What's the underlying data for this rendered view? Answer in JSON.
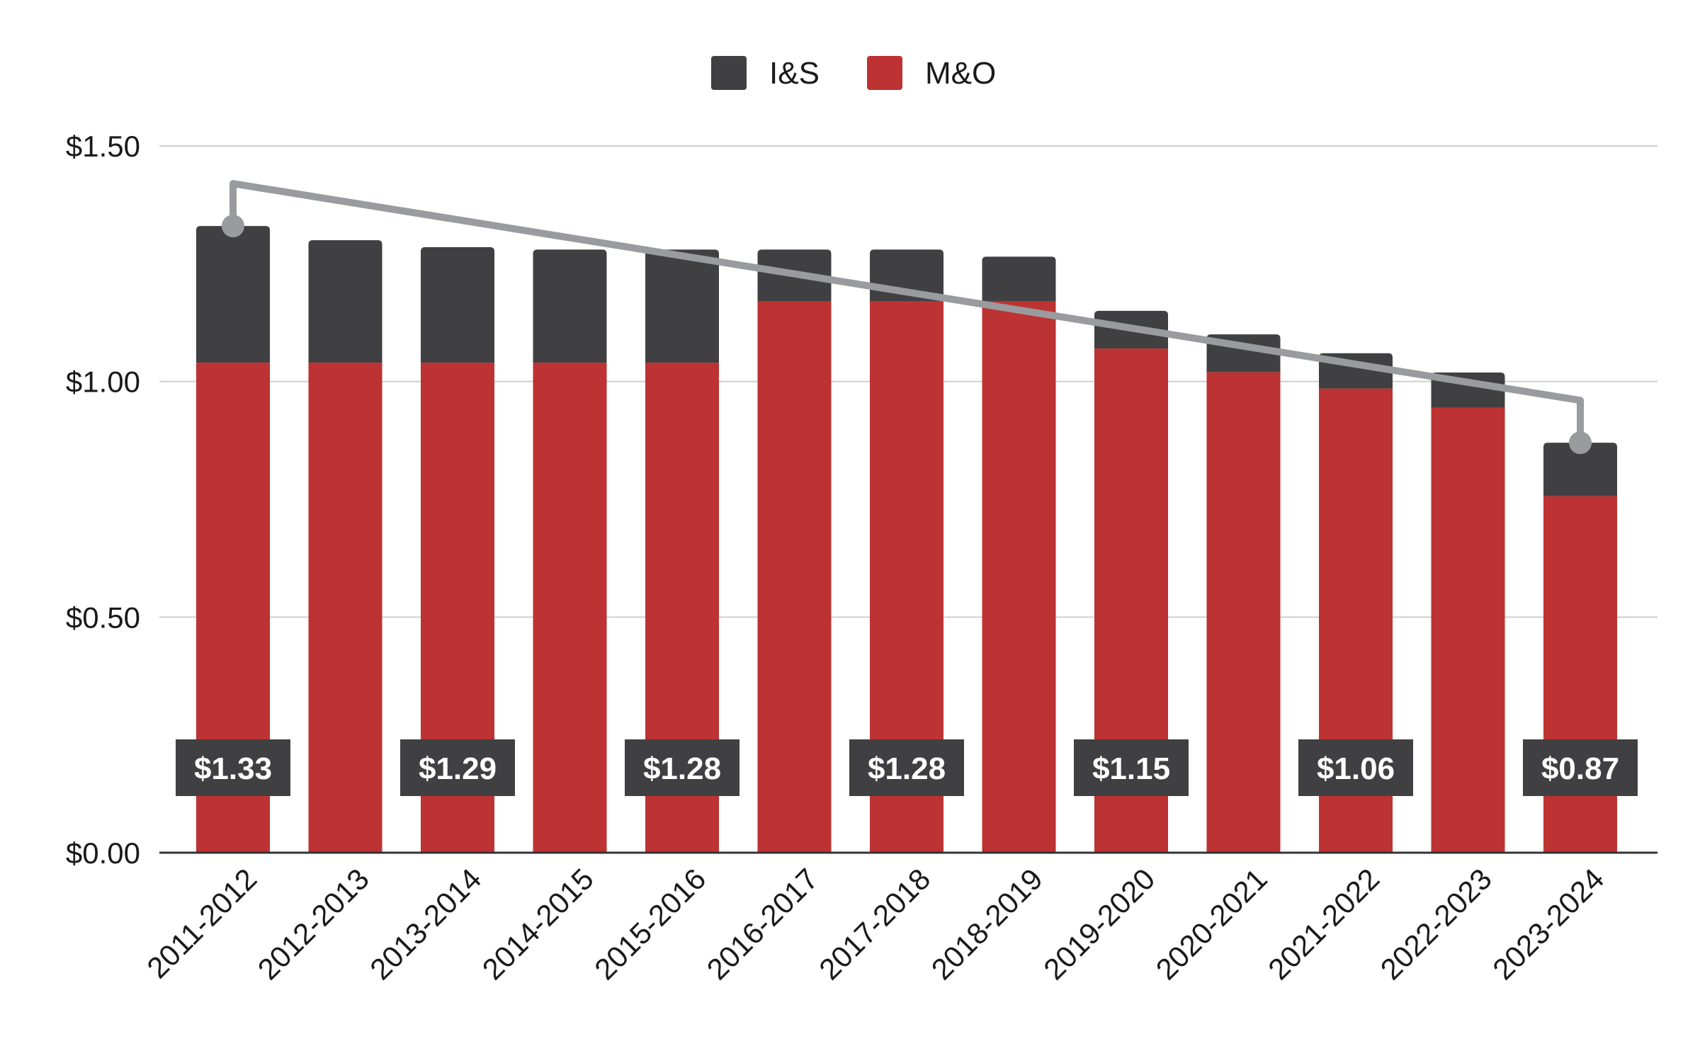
{
  "chart_data": {
    "type": "bar",
    "stacked": true,
    "categories": [
      "2011-2012",
      "2012-2013",
      "2013-2014",
      "2014-2015",
      "2015-2016",
      "2016-2017",
      "2017-2018",
      "2018-2019",
      "2019-2020",
      "2020-2021",
      "2021-2022",
      "2022-2023",
      "2023-2024"
    ],
    "series": [
      {
        "name": "M&O",
        "color": "#bd3232",
        "values": [
          1.04,
          1.04,
          1.04,
          1.04,
          1.04,
          1.17,
          1.17,
          1.17,
          1.07,
          1.02,
          0.985,
          0.944,
          0.757
        ]
      },
      {
        "name": "I&S",
        "color": "#404042",
        "values": [
          0.29,
          0.26,
          0.245,
          0.24,
          0.24,
          0.11,
          0.11,
          0.095,
          0.08,
          0.08,
          0.075,
          0.075,
          0.113
        ]
      }
    ],
    "totals": [
      1.33,
      1.3,
      1.285,
      1.28,
      1.28,
      1.28,
      1.28,
      1.265,
      1.15,
      1.1,
      1.06,
      1.019,
      0.87
    ],
    "total_labels": [
      {
        "index": 0,
        "text": "$1.33"
      },
      {
        "index": 2,
        "text": "$1.29"
      },
      {
        "index": 4,
        "text": "$1.28"
      },
      {
        "index": 6,
        "text": "$1.28"
      },
      {
        "index": 8,
        "text": "$1.15"
      },
      {
        "index": 10,
        "text": "$1.06"
      },
      {
        "index": 12,
        "text": "$0.87"
      }
    ],
    "trend_line": {
      "from_index": 0,
      "to_index": 12,
      "line_start_value": 1.42,
      "line_end_value": 0.96,
      "color": "#9a9b9e"
    },
    "legend": [
      {
        "name": "I&S",
        "color": "#404042"
      },
      {
        "name": "M&O",
        "color": "#bd3232"
      }
    ],
    "legend_position": "top-center",
    "ylim": [
      0,
      1.5
    ],
    "yticks": [
      {
        "value": 0,
        "label": "$0.00"
      },
      {
        "value": 0.5,
        "label": "$0.50"
      },
      {
        "value": 1.0,
        "label": "$1.00"
      },
      {
        "value": 1.5,
        "label": "$1.50"
      }
    ],
    "grid": true,
    "title": "",
    "xlabel": "",
    "ylabel": ""
  }
}
